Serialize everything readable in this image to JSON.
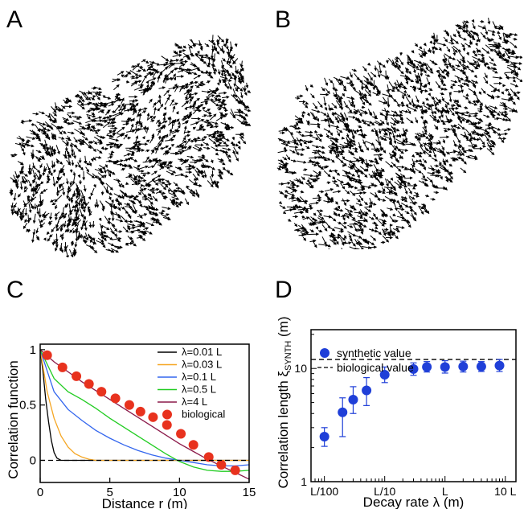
{
  "panels": {
    "a": "A",
    "b": "B",
    "c": "C",
    "d": "D"
  },
  "chart_data": [
    {
      "panel": "A",
      "type": "scatter",
      "description_kind": "velocity-field",
      "arrow_color": "#000000"
    },
    {
      "panel": "B",
      "type": "scatter",
      "description_kind": "velocity-field",
      "arrow_color": "#000000"
    },
    {
      "panel": "C",
      "type": "line",
      "xlabel": "Distance r (m)",
      "ylabel": "Correlation function",
      "xlim": [
        0,
        15
      ],
      "ylim": [
        -0.2,
        1.05
      ],
      "xticks": [
        0,
        5,
        10,
        15
      ],
      "yticks": [
        0,
        0.5,
        1
      ],
      "ytick_labels": [
        "0",
        "0.5",
        "1"
      ],
      "legend_position": "top-right",
      "series": [
        {
          "name": "λ=0.01 L",
          "color": "#000000",
          "x": [
            0,
            0.2,
            0.4,
            0.6,
            0.8,
            1.0,
            1.2,
            1.5,
            2,
            3,
            6,
            10,
            15
          ],
          "y": [
            1.0,
            0.8,
            0.55,
            0.35,
            0.18,
            0.07,
            0.02,
            0.0,
            0.0,
            0.0,
            0.0,
            0.0,
            0.0
          ]
        },
        {
          "name": "λ=0.03 L",
          "color": "#f5a623",
          "x": [
            0,
            0.5,
            1,
            1.5,
            2,
            2.5,
            3,
            3.5,
            4,
            5,
            8,
            12,
            15
          ],
          "y": [
            1.0,
            0.62,
            0.38,
            0.22,
            0.12,
            0.06,
            0.03,
            0.01,
            0.0,
            0.0,
            0.0,
            0.0,
            0.0
          ]
        },
        {
          "name": "λ=0.1 L",
          "color": "#3366ee",
          "x": [
            0,
            1,
            2,
            3,
            4,
            5,
            6,
            7,
            8,
            9,
            10,
            11,
            12,
            13,
            14,
            15
          ],
          "y": [
            1.0,
            0.62,
            0.46,
            0.36,
            0.27,
            0.2,
            0.14,
            0.09,
            0.05,
            0.02,
            0.0,
            -0.02,
            -0.04,
            -0.05,
            -0.05,
            -0.04
          ]
        },
        {
          "name": "λ=0.5 L",
          "color": "#22cc22",
          "x": [
            0,
            1,
            2,
            3,
            4,
            5,
            6,
            7,
            8,
            9,
            10,
            11,
            12,
            13,
            14,
            15
          ],
          "y": [
            1.0,
            0.74,
            0.62,
            0.55,
            0.47,
            0.38,
            0.3,
            0.22,
            0.14,
            0.06,
            -0.01,
            -0.06,
            -0.09,
            -0.1,
            -0.1,
            -0.09
          ]
        },
        {
          "name": "λ=4 L",
          "color": "#8b1a4a",
          "x": [
            0,
            1,
            2,
            3,
            4,
            5,
            6,
            7,
            8,
            9,
            10,
            11,
            12,
            13,
            14,
            15
          ],
          "y": [
            1.0,
            0.89,
            0.8,
            0.71,
            0.63,
            0.55,
            0.47,
            0.39,
            0.31,
            0.23,
            0.15,
            0.08,
            0.01,
            -0.05,
            -0.11,
            -0.17
          ]
        },
        {
          "name": "biological",
          "color": "#e8321e",
          "marker": "circle",
          "x": [
            0.5,
            1.6,
            2.6,
            3.5,
            4.4,
            5.4,
            6.4,
            7.2,
            8.1,
            9.1,
            10.1,
            11,
            12.1,
            13,
            14
          ],
          "y": [
            0.95,
            0.84,
            0.76,
            0.69,
            0.62,
            0.56,
            0.5,
            0.44,
            0.39,
            0.32,
            0.24,
            0.14,
            0.03,
            -0.04,
            -0.09
          ]
        }
      ]
    },
    {
      "panel": "D",
      "type": "scatter",
      "xlabel": "Decay rate  λ  (m)",
      "ylabel": "Correlation length ξ",
      "ylabel_sub": "SYNTH",
      "ylabel_unit": "  (m)",
      "xscale": "log",
      "yscale": "log",
      "xlim": [
        0.006,
        15
      ],
      "ylim": [
        1,
        22
      ],
      "x_unit_L": 1,
      "xticks": [
        0.01,
        0.1,
        1,
        10
      ],
      "xtick_labels": [
        "L/100",
        "L/10",
        "L",
        "10 L"
      ],
      "yticks": [
        1,
        10
      ],
      "ytick_labels": [
        "1",
        "10"
      ],
      "legend_position": "top-left",
      "series": [
        {
          "name": "synthetic value",
          "color": "#1f3fd8",
          "marker": "circle",
          "x": [
            0.01,
            0.02,
            0.03,
            0.05,
            0.1,
            0.3,
            0.5,
            1,
            2,
            4,
            8
          ],
          "y": [
            2.5,
            4.1,
            5.3,
            6.4,
            8.8,
            9.9,
            10.3,
            10.3,
            10.4,
            10.4,
            10.6
          ],
          "err_lo": [
            0.45,
            1.6,
            1.3,
            1.7,
            1.3,
            1.2,
            1.0,
            1.2,
            1.1,
            1.0,
            1.2
          ],
          "err_hi": [
            0.5,
            1.4,
            1.6,
            1.9,
            1.5,
            1.3,
            1.2,
            1.4,
            1.2,
            1.1,
            1.4
          ]
        },
        {
          "name": "biological value",
          "color": "#000000",
          "style": "dashed",
          "y_const": 12
        }
      ]
    }
  ]
}
